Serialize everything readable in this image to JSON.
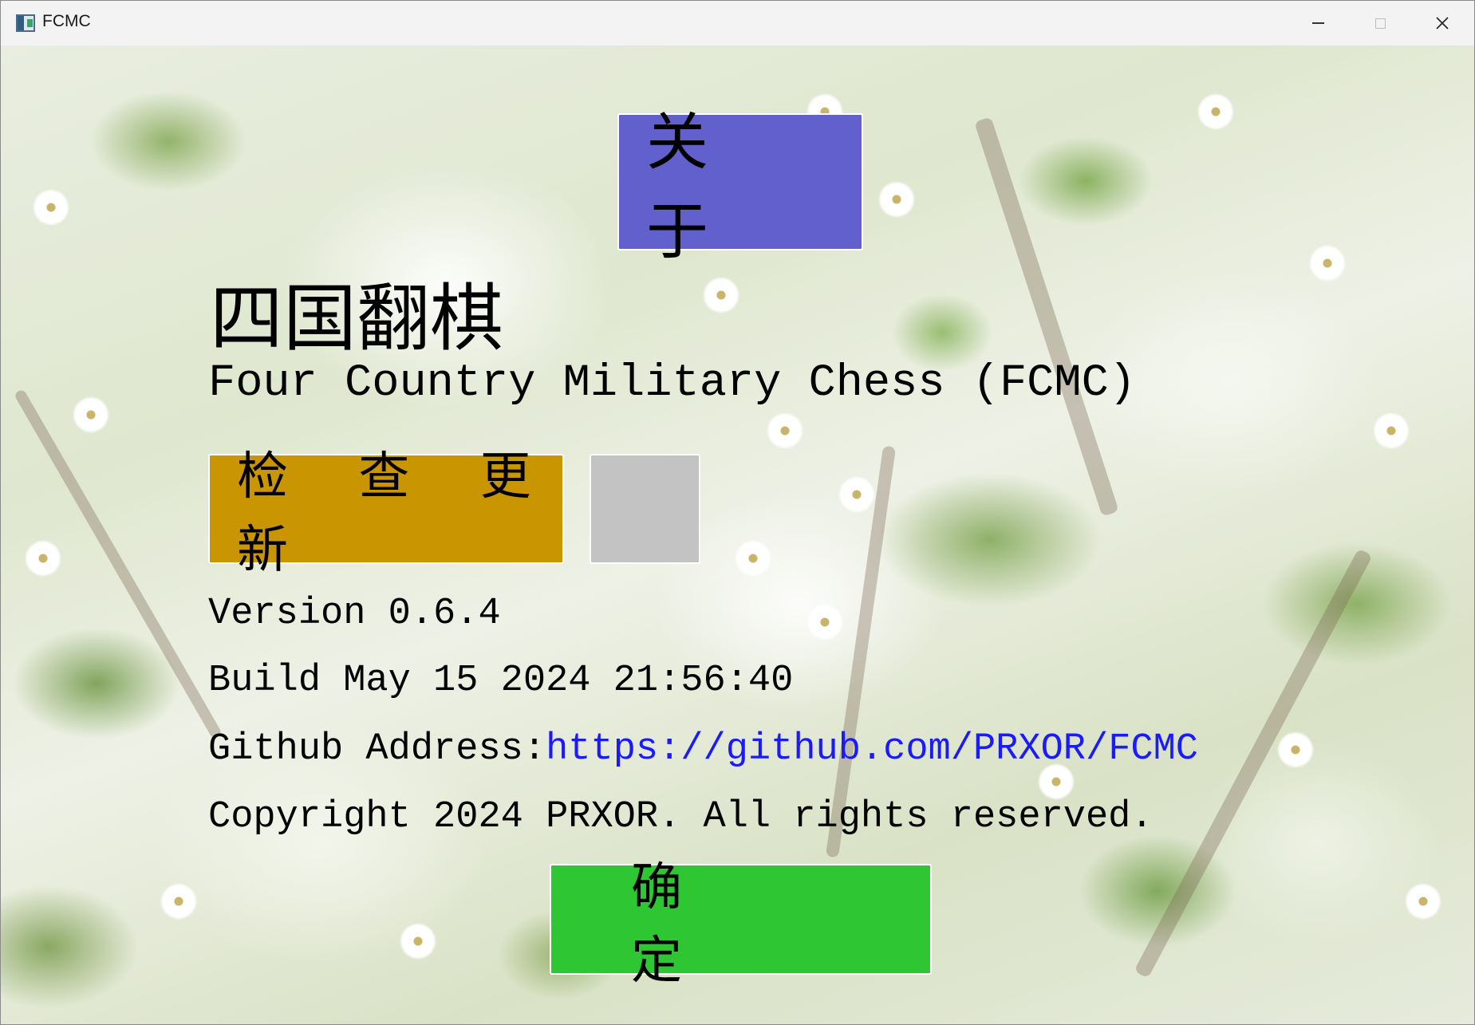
{
  "window": {
    "title": "FCMC"
  },
  "about_button": {
    "label": "关 于"
  },
  "app": {
    "chinese_title": "四国翻棋",
    "english_title": "Four Country Military Chess (FCMC)"
  },
  "update_button": {
    "label": "检 查 更 新"
  },
  "info": {
    "version": "Version 0.6.4",
    "build": "Build May 15 2024  21:56:40",
    "github_label": "Github Address:",
    "github_url": "https://github.com/PRXOR/FCMC",
    "copyright": "Copyright 2024 PRXOR. All rights reserved."
  },
  "ok_button": {
    "label": "确 定"
  },
  "colors": {
    "about_button": "#6260cc",
    "update_button": "#c99500",
    "status_square": "#c3c3c3",
    "ok_button": "#2ec633",
    "link": "#1a1aff"
  },
  "icons": {
    "app": "fcmc-app-icon",
    "minimize": "minimize-icon",
    "maximize": "maximize-icon",
    "close": "close-icon"
  }
}
